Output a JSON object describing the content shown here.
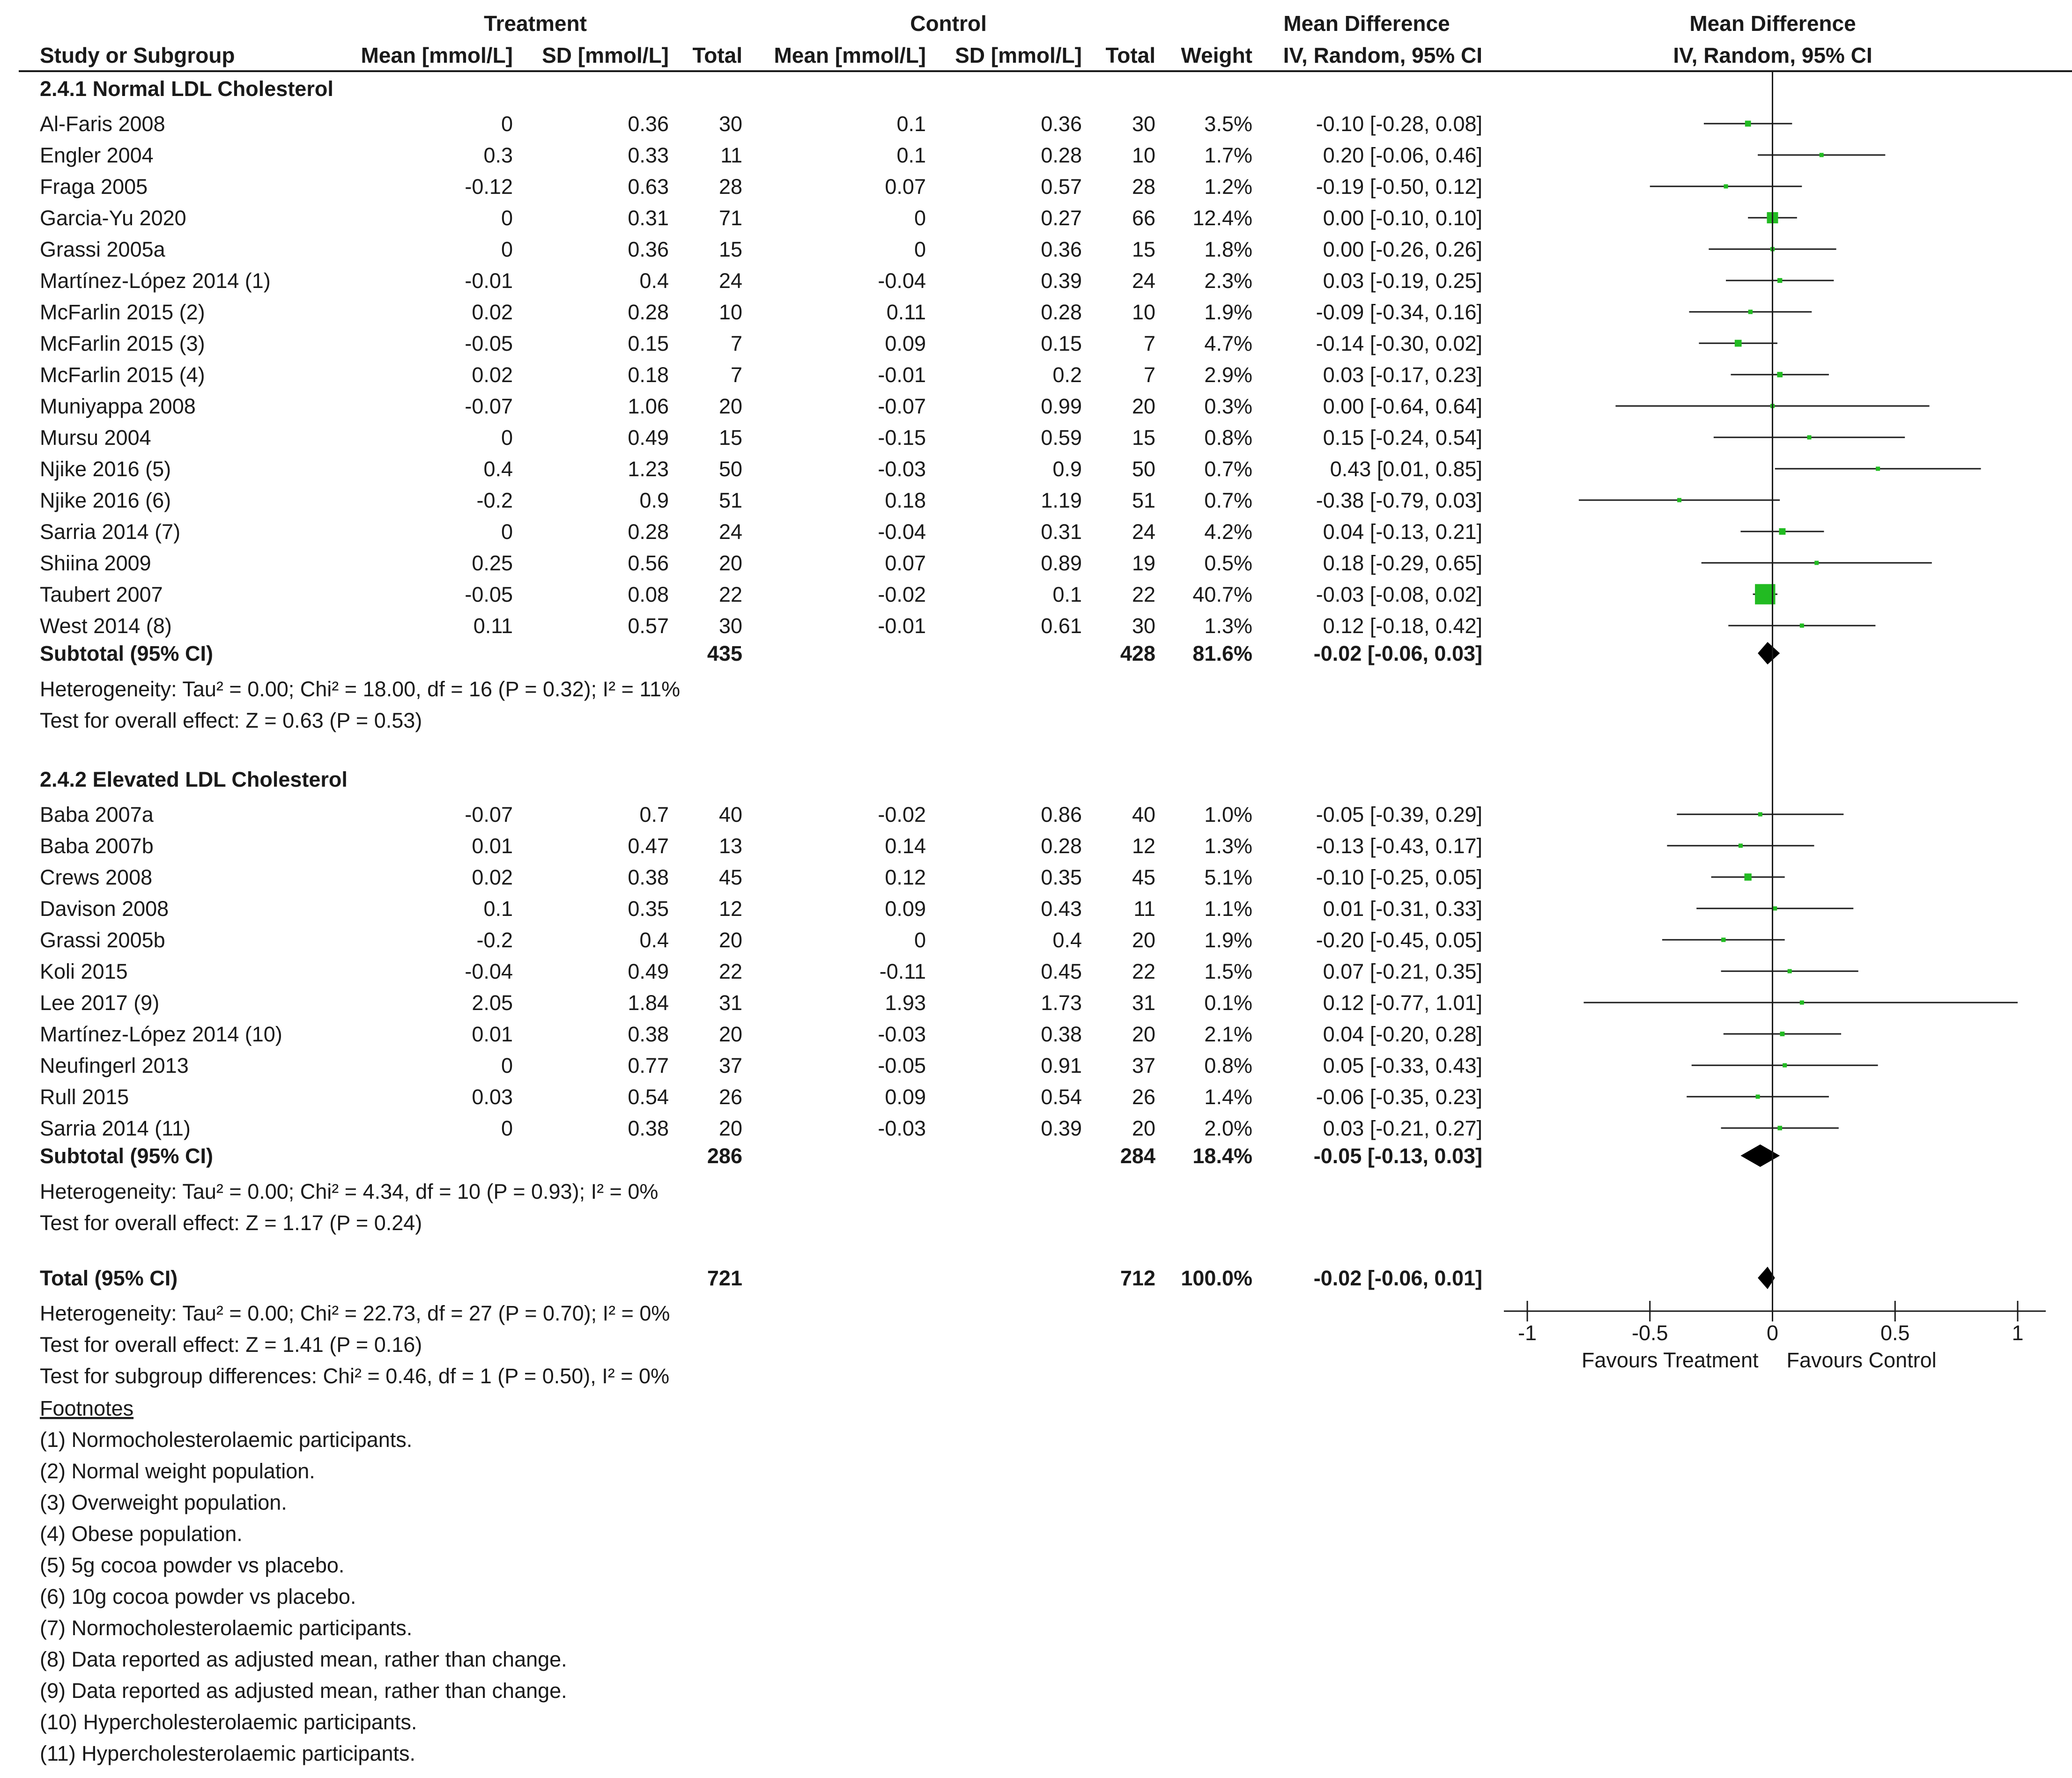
{
  "chart_data": {
    "type": "forest",
    "headers": {
      "treatment": "Treatment",
      "control": "Control",
      "md_group": "Mean Difference",
      "plot_group": "Mean Difference",
      "study": "Study or Subgroup",
      "t_mean": "Mean [mmol/L]",
      "t_sd": "SD [mmol/L]",
      "t_total": "Total",
      "c_mean": "Mean [mmol/L]",
      "c_sd": "SD [mmol/L]",
      "c_total": "Total",
      "weight": "Weight",
      "md_method": "IV, Random, 95% CI",
      "plot_method": "IV, Random, 95% CI"
    },
    "groups": [
      {
        "title": "2.4.1 Normal LDL Cholesterol",
        "studies": [
          {
            "name": "Al-Faris 2008",
            "t_mean": "0",
            "t_sd": "0.36",
            "t_n": "30",
            "c_mean": "0.1",
            "c_sd": "0.36",
            "c_n": "30",
            "weight": "3.5%",
            "ci": "-0.10 [-0.28, 0.08]",
            "md": -0.1,
            "lo": -0.28,
            "hi": 0.08,
            "w": 3.5
          },
          {
            "name": "Engler 2004",
            "t_mean": "0.3",
            "t_sd": "0.33",
            "t_n": "11",
            "c_mean": "0.1",
            "c_sd": "0.28",
            "c_n": "10",
            "weight": "1.7%",
            "ci": "0.20 [-0.06, 0.46]",
            "md": 0.2,
            "lo": -0.06,
            "hi": 0.46,
            "w": 1.7
          },
          {
            "name": "Fraga 2005",
            "t_mean": "-0.12",
            "t_sd": "0.63",
            "t_n": "28",
            "c_mean": "0.07",
            "c_sd": "0.57",
            "c_n": "28",
            "weight": "1.2%",
            "ci": "-0.19 [-0.50, 0.12]",
            "md": -0.19,
            "lo": -0.5,
            "hi": 0.12,
            "w": 1.2
          },
          {
            "name": "Garcia-Yu 2020",
            "t_mean": "0",
            "t_sd": "0.31",
            "t_n": "71",
            "c_mean": "0",
            "c_sd": "0.27",
            "c_n": "66",
            "weight": "12.4%",
            "ci": "0.00 [-0.10, 0.10]",
            "md": 0.0,
            "lo": -0.1,
            "hi": 0.1,
            "w": 12.4
          },
          {
            "name": "Grassi 2005a",
            "t_mean": "0",
            "t_sd": "0.36",
            "t_n": "15",
            "c_mean": "0",
            "c_sd": "0.36",
            "c_n": "15",
            "weight": "1.8%",
            "ci": "0.00 [-0.26, 0.26]",
            "md": 0.0,
            "lo": -0.26,
            "hi": 0.26,
            "w": 1.8
          },
          {
            "name": "Martínez-López 2014 (1)",
            "t_mean": "-0.01",
            "t_sd": "0.4",
            "t_n": "24",
            "c_mean": "-0.04",
            "c_sd": "0.39",
            "c_n": "24",
            "weight": "2.3%",
            "ci": "0.03 [-0.19, 0.25]",
            "md": 0.03,
            "lo": -0.19,
            "hi": 0.25,
            "w": 2.3
          },
          {
            "name": "McFarlin 2015 (2)",
            "t_mean": "0.02",
            "t_sd": "0.28",
            "t_n": "10",
            "c_mean": "0.11",
            "c_sd": "0.28",
            "c_n": "10",
            "weight": "1.9%",
            "ci": "-0.09 [-0.34, 0.16]",
            "md": -0.09,
            "lo": -0.34,
            "hi": 0.16,
            "w": 1.9
          },
          {
            "name": "McFarlin 2015 (3)",
            "t_mean": "-0.05",
            "t_sd": "0.15",
            "t_n": "7",
            "c_mean": "0.09",
            "c_sd": "0.15",
            "c_n": "7",
            "weight": "4.7%",
            "ci": "-0.14 [-0.30, 0.02]",
            "md": -0.14,
            "lo": -0.3,
            "hi": 0.02,
            "w": 4.7
          },
          {
            "name": "McFarlin 2015 (4)",
            "t_mean": "0.02",
            "t_sd": "0.18",
            "t_n": "7",
            "c_mean": "-0.01",
            "c_sd": "0.2",
            "c_n": "7",
            "weight": "2.9%",
            "ci": "0.03 [-0.17, 0.23]",
            "md": 0.03,
            "lo": -0.17,
            "hi": 0.23,
            "w": 2.9
          },
          {
            "name": "Muniyappa 2008",
            "t_mean": "-0.07",
            "t_sd": "1.06",
            "t_n": "20",
            "c_mean": "-0.07",
            "c_sd": "0.99",
            "c_n": "20",
            "weight": "0.3%",
            "ci": "0.00 [-0.64, 0.64]",
            "md": 0.0,
            "lo": -0.64,
            "hi": 0.64,
            "w": 0.3
          },
          {
            "name": "Mursu 2004",
            "t_mean": "0",
            "t_sd": "0.49",
            "t_n": "15",
            "c_mean": "-0.15",
            "c_sd": "0.59",
            "c_n": "15",
            "weight": "0.8%",
            "ci": "0.15 [-0.24, 0.54]",
            "md": 0.15,
            "lo": -0.24,
            "hi": 0.54,
            "w": 0.8
          },
          {
            "name": "Njike 2016 (5)",
            "t_mean": "0.4",
            "t_sd": "1.23",
            "t_n": "50",
            "c_mean": "-0.03",
            "c_sd": "0.9",
            "c_n": "50",
            "weight": "0.7%",
            "ci": "0.43 [0.01, 0.85]",
            "md": 0.43,
            "lo": 0.01,
            "hi": 0.85,
            "w": 0.7
          },
          {
            "name": "Njike 2016 (6)",
            "t_mean": "-0.2",
            "t_sd": "0.9",
            "t_n": "51",
            "c_mean": "0.18",
            "c_sd": "1.19",
            "c_n": "51",
            "weight": "0.7%",
            "ci": "-0.38 [-0.79, 0.03]",
            "md": -0.38,
            "lo": -0.79,
            "hi": 0.03,
            "w": 0.7
          },
          {
            "name": "Sarria 2014 (7)",
            "t_mean": "0",
            "t_sd": "0.28",
            "t_n": "24",
            "c_mean": "-0.04",
            "c_sd": "0.31",
            "c_n": "24",
            "weight": "4.2%",
            "ci": "0.04 [-0.13, 0.21]",
            "md": 0.04,
            "lo": -0.13,
            "hi": 0.21,
            "w": 4.2
          },
          {
            "name": "Shiina 2009",
            "t_mean": "0.25",
            "t_sd": "0.56",
            "t_n": "20",
            "c_mean": "0.07",
            "c_sd": "0.89",
            "c_n": "19",
            "weight": "0.5%",
            "ci": "0.18 [-0.29, 0.65]",
            "md": 0.18,
            "lo": -0.29,
            "hi": 0.65,
            "w": 0.5
          },
          {
            "name": "Taubert 2007",
            "t_mean": "-0.05",
            "t_sd": "0.08",
            "t_n": "22",
            "c_mean": "-0.02",
            "c_sd": "0.1",
            "c_n": "22",
            "weight": "40.7%",
            "ci": "-0.03 [-0.08, 0.02]",
            "md": -0.03,
            "lo": -0.08,
            "hi": 0.02,
            "w": 40.7
          },
          {
            "name": "West 2014 (8)",
            "t_mean": "0.11",
            "t_sd": "0.57",
            "t_n": "30",
            "c_mean": "-0.01",
            "c_sd": "0.61",
            "c_n": "30",
            "weight": "1.3%",
            "ci": "0.12 [-0.18, 0.42]",
            "md": 0.12,
            "lo": -0.18,
            "hi": 0.42,
            "w": 1.3
          }
        ],
        "subtotal": {
          "label": "Subtotal (95% CI)",
          "t_n": "435",
          "c_n": "428",
          "weight": "81.6%",
          "ci": "-0.02 [-0.06, 0.03]",
          "md": -0.02,
          "lo": -0.06,
          "hi": 0.03
        },
        "heterogeneity": "Heterogeneity: Tau² = 0.00; Chi² = 18.00, df = 16 (P = 0.32); I² = 11%",
        "overall": "Test for overall effect: Z = 0.63 (P = 0.53)"
      },
      {
        "title": "2.4.2 Elevated LDL Cholesterol",
        "studies": [
          {
            "name": "Baba 2007a",
            "t_mean": "-0.07",
            "t_sd": "0.7",
            "t_n": "40",
            "c_mean": "-0.02",
            "c_sd": "0.86",
            "c_n": "40",
            "weight": "1.0%",
            "ci": "-0.05 [-0.39, 0.29]",
            "md": -0.05,
            "lo": -0.39,
            "hi": 0.29,
            "w": 1.0
          },
          {
            "name": "Baba 2007b",
            "t_mean": "0.01",
            "t_sd": "0.47",
            "t_n": "13",
            "c_mean": "0.14",
            "c_sd": "0.28",
            "c_n": "12",
            "weight": "1.3%",
            "ci": "-0.13 [-0.43, 0.17]",
            "md": -0.13,
            "lo": -0.43,
            "hi": 0.17,
            "w": 1.3
          },
          {
            "name": "Crews 2008",
            "t_mean": "0.02",
            "t_sd": "0.38",
            "t_n": "45",
            "c_mean": "0.12",
            "c_sd": "0.35",
            "c_n": "45",
            "weight": "5.1%",
            "ci": "-0.10 [-0.25, 0.05]",
            "md": -0.1,
            "lo": -0.25,
            "hi": 0.05,
            "w": 5.1
          },
          {
            "name": "Davison 2008",
            "t_mean": "0.1",
            "t_sd": "0.35",
            "t_n": "12",
            "c_mean": "0.09",
            "c_sd": "0.43",
            "c_n": "11",
            "weight": "1.1%",
            "ci": "0.01 [-0.31, 0.33]",
            "md": 0.01,
            "lo": -0.31,
            "hi": 0.33,
            "w": 1.1
          },
          {
            "name": "Grassi 2005b",
            "t_mean": "-0.2",
            "t_sd": "0.4",
            "t_n": "20",
            "c_mean": "0",
            "c_sd": "0.4",
            "c_n": "20",
            "weight": "1.9%",
            "ci": "-0.20 [-0.45, 0.05]",
            "md": -0.2,
            "lo": -0.45,
            "hi": 0.05,
            "w": 1.9
          },
          {
            "name": "Koli 2015",
            "t_mean": "-0.04",
            "t_sd": "0.49",
            "t_n": "22",
            "c_mean": "-0.11",
            "c_sd": "0.45",
            "c_n": "22",
            "weight": "1.5%",
            "ci": "0.07 [-0.21, 0.35]",
            "md": 0.07,
            "lo": -0.21,
            "hi": 0.35,
            "w": 1.5
          },
          {
            "name": "Lee 2017 (9)",
            "t_mean": "2.05",
            "t_sd": "1.84",
            "t_n": "31",
            "c_mean": "1.93",
            "c_sd": "1.73",
            "c_n": "31",
            "weight": "0.1%",
            "ci": "0.12 [-0.77, 1.01]",
            "md": 0.12,
            "lo": -0.77,
            "hi": 1.01,
            "w": 0.1
          },
          {
            "name": "Martínez-López 2014 (10)",
            "t_mean": "0.01",
            "t_sd": "0.38",
            "t_n": "20",
            "c_mean": "-0.03",
            "c_sd": "0.38",
            "c_n": "20",
            "weight": "2.1%",
            "ci": "0.04 [-0.20, 0.28]",
            "md": 0.04,
            "lo": -0.2,
            "hi": 0.28,
            "w": 2.1
          },
          {
            "name": "Neufingerl 2013",
            "t_mean": "0",
            "t_sd": "0.77",
            "t_n": "37",
            "c_mean": "-0.05",
            "c_sd": "0.91",
            "c_n": "37",
            "weight": "0.8%",
            "ci": "0.05 [-0.33, 0.43]",
            "md": 0.05,
            "lo": -0.33,
            "hi": 0.43,
            "w": 0.8
          },
          {
            "name": "Rull 2015",
            "t_mean": "0.03",
            "t_sd": "0.54",
            "t_n": "26",
            "c_mean": "0.09",
            "c_sd": "0.54",
            "c_n": "26",
            "weight": "1.4%",
            "ci": "-0.06 [-0.35, 0.23]",
            "md": -0.06,
            "lo": -0.35,
            "hi": 0.23,
            "w": 1.4
          },
          {
            "name": "Sarria 2014 (11)",
            "t_mean": "0",
            "t_sd": "0.38",
            "t_n": "20",
            "c_mean": "-0.03",
            "c_sd": "0.39",
            "c_n": "20",
            "weight": "2.0%",
            "ci": "0.03 [-0.21, 0.27]",
            "md": 0.03,
            "lo": -0.21,
            "hi": 0.27,
            "w": 2.0
          }
        ],
        "subtotal": {
          "label": "Subtotal (95% CI)",
          "t_n": "286",
          "c_n": "284",
          "weight": "18.4%",
          "ci": "-0.05 [-0.13, 0.03]",
          "md": -0.05,
          "lo": -0.13,
          "hi": 0.03
        },
        "heterogeneity": "Heterogeneity: Tau² = 0.00; Chi² = 4.34, df = 10 (P = 0.93); I² = 0%",
        "overall": "Test for overall effect: Z = 1.17 (P = 0.24)"
      }
    ],
    "total": {
      "label": "Total (95% CI)",
      "t_n": "721",
      "c_n": "712",
      "weight": "100.0%",
      "ci": "-0.02 [-0.06, 0.01]",
      "md": -0.02,
      "lo": -0.06,
      "hi": 0.01
    },
    "total_stats": [
      "Heterogeneity: Tau² = 0.00; Chi² = 22.73, df = 27 (P = 0.70); I² = 0%",
      "Test for overall effect: Z = 1.41 (P = 0.16)",
      "Test for subgroup differences: Chi² = 0.46, df = 1 (P = 0.50), I² = 0%"
    ],
    "axis": {
      "xlim": [
        -1,
        1
      ],
      "ticks": [
        -1,
        -0.5,
        0,
        0.5,
        1
      ],
      "tick_labels": [
        "-1",
        "-0.5",
        "0",
        "0.5",
        "1"
      ],
      "favours_left": "Favours Treatment",
      "favours_right": "Favours Control"
    },
    "footnotes_title": "Footnotes",
    "footnotes": [
      "(1) Normocholesterolaemic participants.",
      "(2) Normal weight population.",
      "(3) Overweight population.",
      "(4) Obese population.",
      "(5) 5g cocoa powder vs placebo.",
      "(6) 10g cocoa powder vs placebo.",
      "(7) Normocholesterolaemic participants.",
      "(8) Data reported as adjusted mean, rather than change.",
      "(9) Data reported as adjusted mean, rather than change.",
      "(10) Hypercholesterolaemic participants.",
      "(11) Hypercholesterolaemic participants."
    ],
    "colors": {
      "square": "#22bb22",
      "diamond": "#000000",
      "line": "#1a1a1a"
    }
  }
}
